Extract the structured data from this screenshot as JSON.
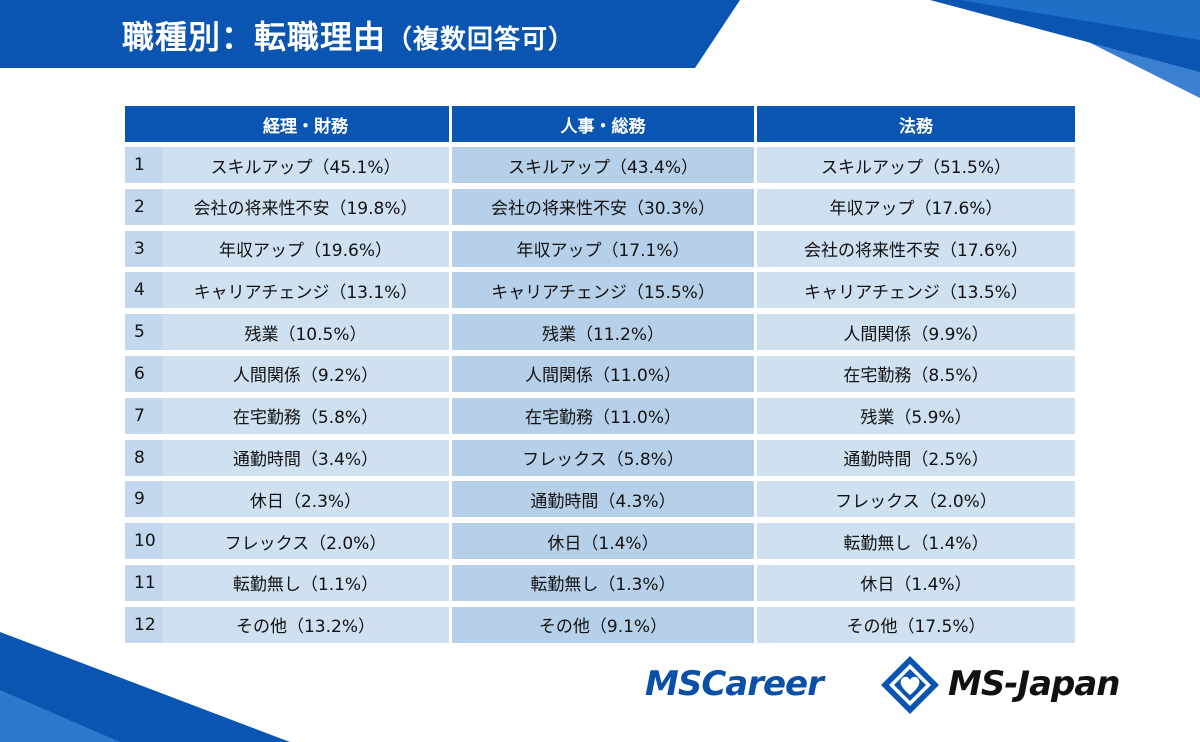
{
  "header": {
    "title": "職種別：転職理由",
    "subtitle": "（複数回答可）"
  },
  "table": {
    "columns": [
      "経理・財務",
      "人事・総務",
      "法務"
    ],
    "rows": [
      {
        "rank": "1",
        "cells": [
          "スキルアップ（45.1%）",
          "スキルアップ（43.4%）",
          "スキルアップ（51.5%）"
        ]
      },
      {
        "rank": "2",
        "cells": [
          "会社の将来性不安（19.8%）",
          "会社の将来性不安（30.3%）",
          "年収アップ（17.6%）"
        ]
      },
      {
        "rank": "3",
        "cells": [
          "年収アップ（19.6%）",
          "年収アップ（17.1%）",
          "会社の将来性不安（17.6%）"
        ]
      },
      {
        "rank": "4",
        "cells": [
          "キャリアチェンジ（13.1%）",
          "キャリアチェンジ（15.5%）",
          "キャリアチェンジ（13.5%）"
        ]
      },
      {
        "rank": "5",
        "cells": [
          "残業（10.5%）",
          "残業（11.2%）",
          "人間関係（9.9%）"
        ]
      },
      {
        "rank": "6",
        "cells": [
          "人間関係（9.2%）",
          "人間関係（11.0%）",
          "在宅勤務（8.5%）"
        ]
      },
      {
        "rank": "7",
        "cells": [
          "在宅勤務（5.8%）",
          "在宅勤務（11.0%）",
          "残業（5.9%）"
        ]
      },
      {
        "rank": "8",
        "cells": [
          "通勤時間（3.4%）",
          "フレックス（5.8%）",
          "通勤時間（2.5%）"
        ]
      },
      {
        "rank": "9",
        "cells": [
          "休日（2.3%）",
          "通勤時間（4.3%）",
          "フレックス（2.0%）"
        ]
      },
      {
        "rank": "10",
        "cells": [
          "フレックス（2.0%）",
          "休日（1.4%）",
          "転勤無し（1.4%）"
        ]
      },
      {
        "rank": "11",
        "cells": [
          "転勤無し（1.1%）",
          "転勤無し（1.3%）",
          "休日（1.4%）"
        ]
      },
      {
        "rank": "12",
        "cells": [
          "その他（13.2%）",
          "その他（9.1%）",
          "その他（17.5%）"
        ]
      }
    ]
  },
  "logos": {
    "left": "MSCareer",
    "right": "MS-Japan",
    "mark_icon": "ms-diamond-heart-logo"
  },
  "colors": {
    "brand_blue": "#0a55b2",
    "cell_light": "#cfe0f1",
    "cell_mid": "#b7d0ea"
  }
}
